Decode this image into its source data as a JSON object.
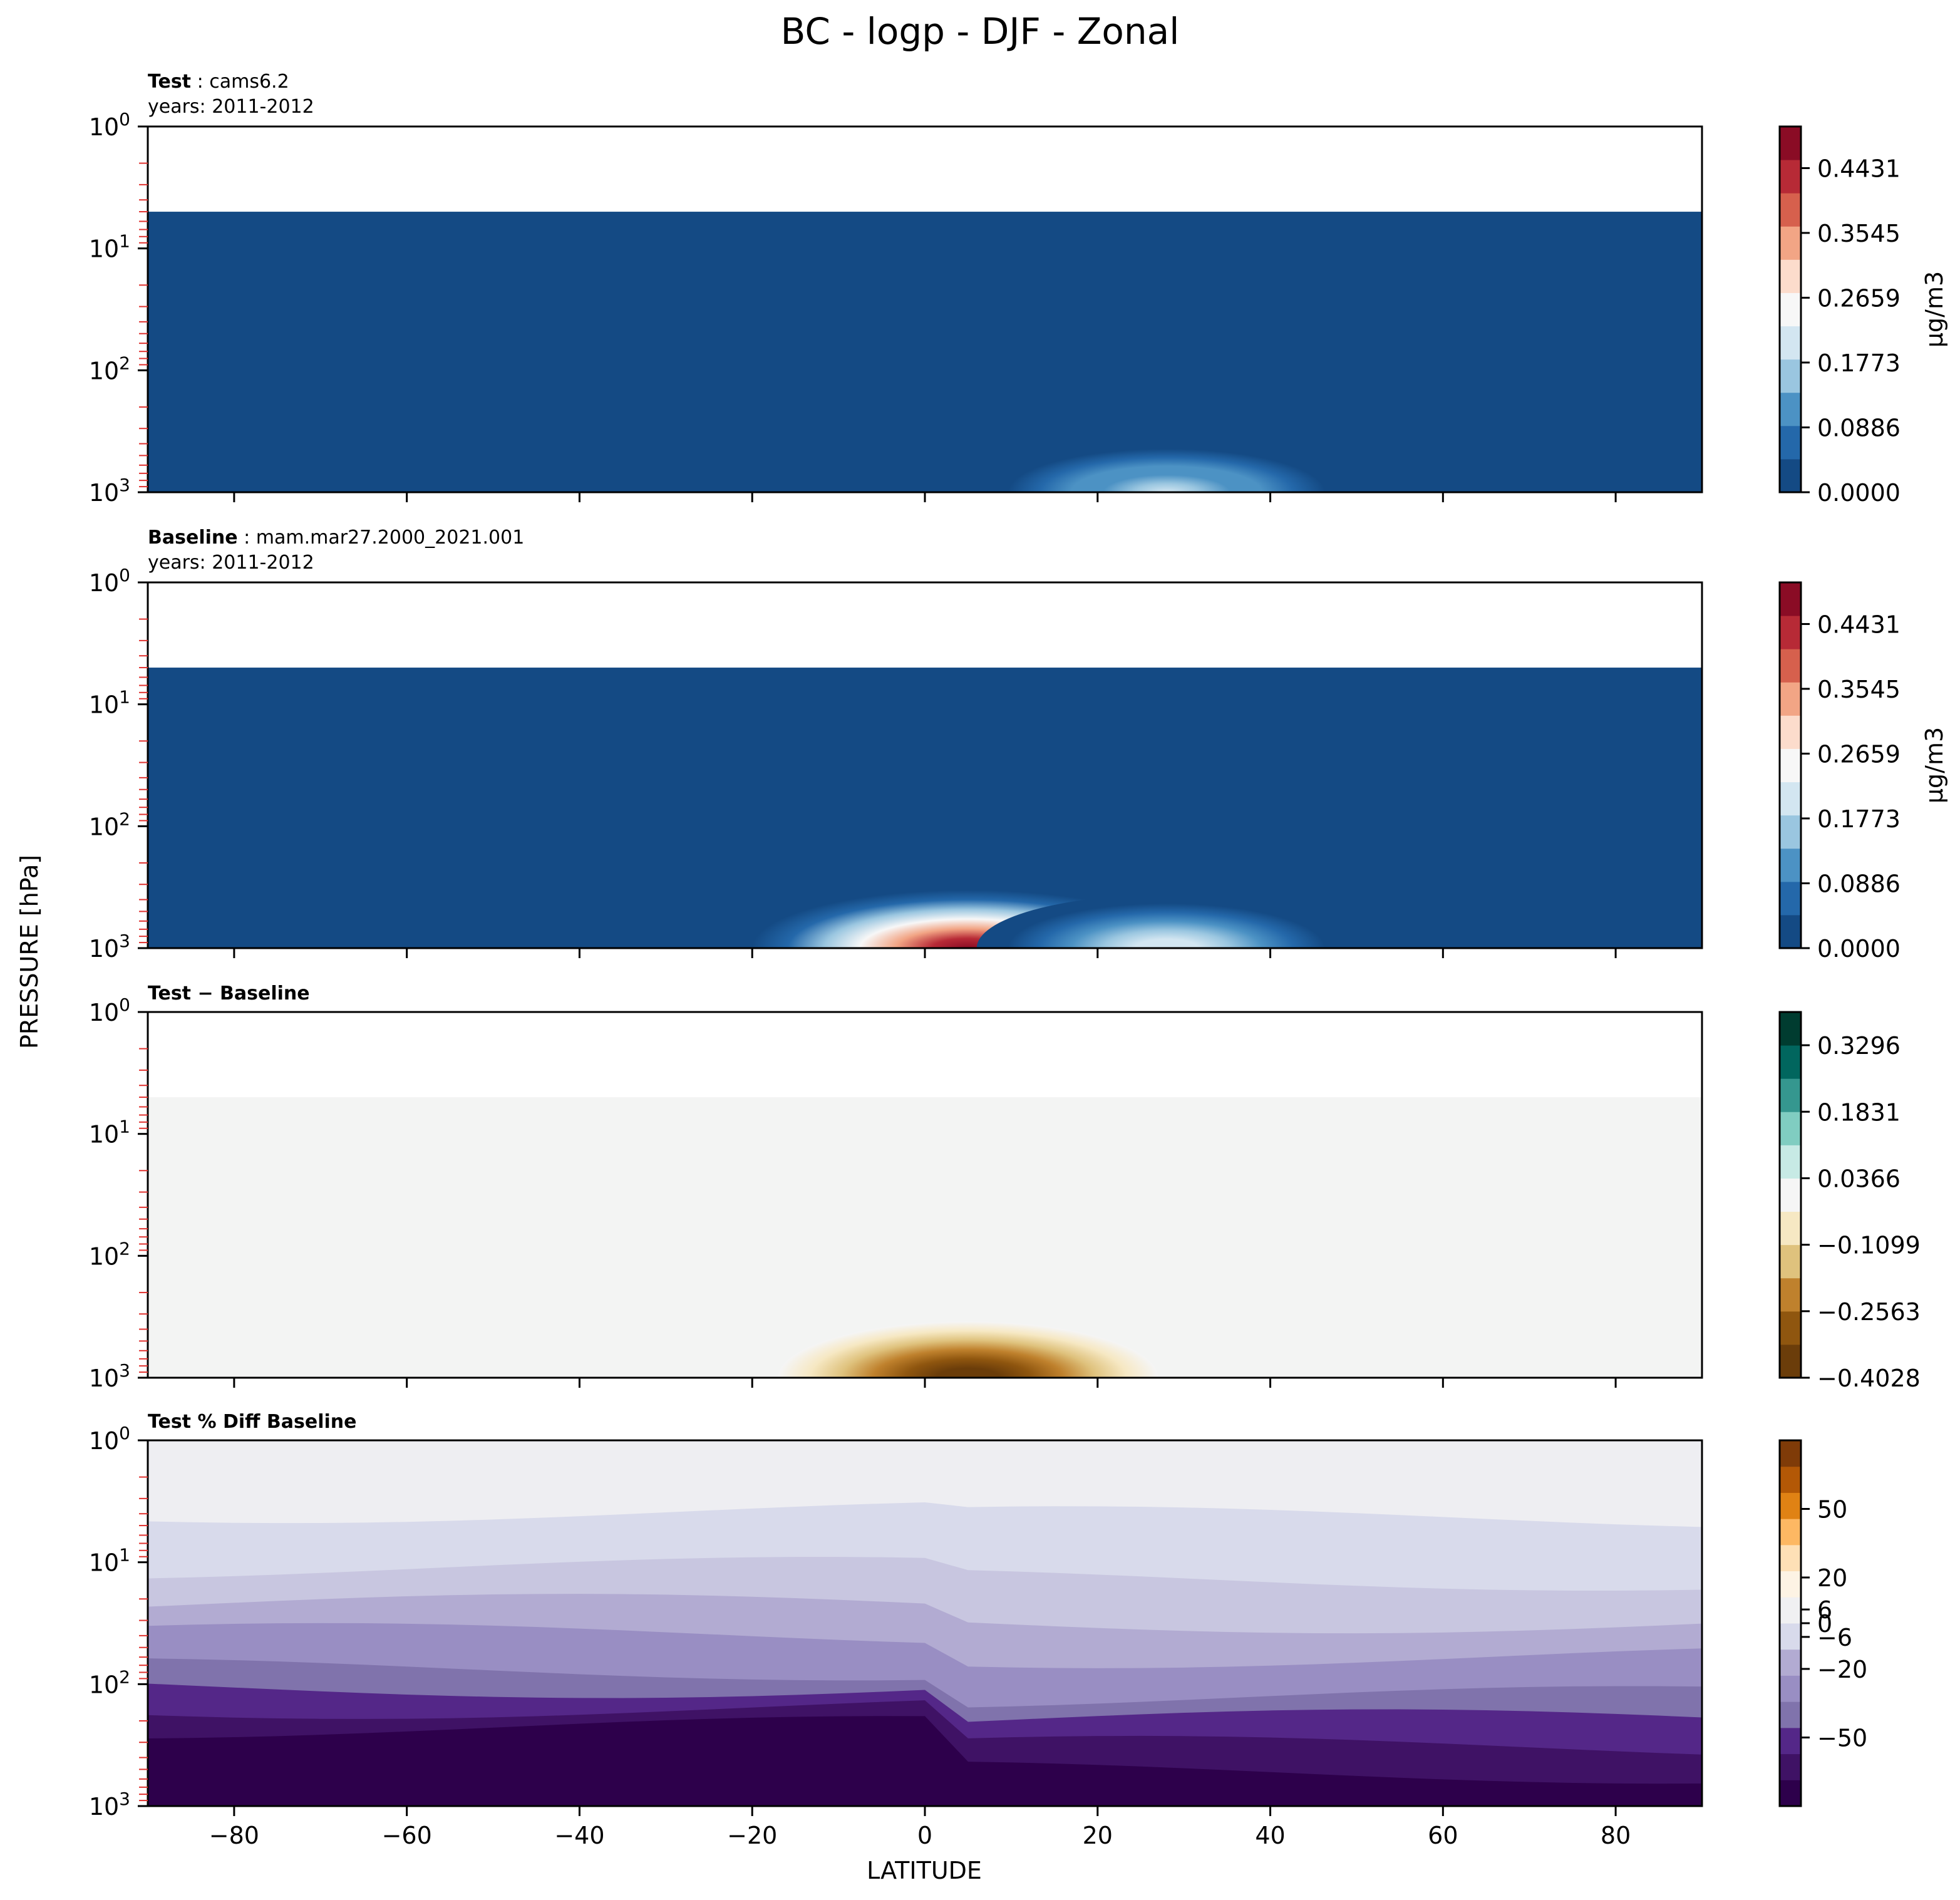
{
  "figure": {
    "title": "BC - logp - DJF - Zonal",
    "ylabel": "PRESSURE [hPa]",
    "xlabel": "LATITUDE"
  },
  "chart_data": [
    {
      "type": "heatmap",
      "title_bold": "Test",
      "title_rest": ": cams6.2",
      "subtitle": "years: 2011-2012",
      "x_range": [
        -90,
        90
      ],
      "y_scale": "log",
      "y_range": [
        1,
        1000
      ],
      "y_ticks": [
        {
          "exp": "0",
          "value": 1
        },
        {
          "exp": "1",
          "value": 10
        },
        {
          "exp": "2",
          "value": 100
        },
        {
          "exp": "3",
          "value": 1000
        }
      ],
      "x_ticks": [
        -80,
        -60,
        -40,
        -20,
        0,
        20,
        40,
        60,
        80
      ],
      "show_x_tick_labels": false,
      "colorbar": {
        "units": "µg/m3",
        "tick_labels": [
          "0.0000",
          "0.0886",
          "0.1773",
          "0.2659",
          "0.3545",
          "0.4431"
        ],
        "tick_values": [
          0,
          0.0886,
          0.1773,
          0.2659,
          0.3545,
          0.4431
        ],
        "range": [
          0,
          0.5
        ],
        "colors": [
          "#144a84",
          "#2468aa",
          "#4c92c4",
          "#9ac6e0",
          "#d3e6f1",
          "#f7f7f7",
          "#fcdccc",
          "#f2a585",
          "#d6604d",
          "#b72a36",
          "#8a0c25"
        ]
      },
      "fill": {
        "pressure_top": 5,
        "background_color": "#144a84"
      },
      "features": [
        {
          "kind": "blob",
          "lat": 28,
          "pressure": 800,
          "peak": 0.2,
          "lat_halfwidth": 22,
          "p_halfwidth": 250,
          "peak_color": "#f7f7f7"
        }
      ]
    },
    {
      "type": "heatmap",
      "title_bold": "Baseline",
      "title_rest": ": mam.mar27.2000_2021.001",
      "subtitle": "years: 2011-2012",
      "x_range": [
        -90,
        90
      ],
      "y_scale": "log",
      "y_range": [
        1,
        1000
      ],
      "y_ticks": [
        {
          "exp": "0",
          "value": 1
        },
        {
          "exp": "1",
          "value": 10
        },
        {
          "exp": "2",
          "value": 100
        },
        {
          "exp": "3",
          "value": 1000
        }
      ],
      "x_ticks": [
        -80,
        -60,
        -40,
        -20,
        0,
        20,
        40,
        60,
        80
      ],
      "show_x_tick_labels": false,
      "colorbar": {
        "units": "µg/m3",
        "tick_labels": [
          "0.0000",
          "0.0886",
          "0.1773",
          "0.2659",
          "0.3545",
          "0.4431"
        ],
        "tick_values": [
          0,
          0.0886,
          0.1773,
          0.2659,
          0.3545,
          0.4431
        ],
        "range": [
          0,
          0.5
        ],
        "colors": [
          "#144a84",
          "#2468aa",
          "#4c92c4",
          "#9ac6e0",
          "#d3e6f1",
          "#f7f7f7",
          "#fcdccc",
          "#f2a585",
          "#d6604d",
          "#b72a36",
          "#8a0c25"
        ]
      },
      "fill": {
        "pressure_top": 5,
        "background_color": "#144a84"
      },
      "features": [
        {
          "kind": "blob",
          "lat": 5,
          "pressure": 950,
          "peak": 0.5,
          "lat_halfwidth": 25,
          "p_halfwidth": 450,
          "peak_color": "#8a0c25"
        },
        {
          "kind": "blob",
          "lat": 28,
          "pressure": 850,
          "peak": 0.22,
          "lat_halfwidth": 22,
          "p_halfwidth": 300,
          "peak_color": "#f7f7f7"
        }
      ]
    },
    {
      "type": "heatmap",
      "title_bold": "Test − Baseline",
      "title_rest": "",
      "subtitle": "",
      "x_range": [
        -90,
        90
      ],
      "y_scale": "log",
      "y_range": [
        1,
        1000
      ],
      "y_ticks": [
        {
          "exp": "0",
          "value": 1
        },
        {
          "exp": "1",
          "value": 10
        },
        {
          "exp": "2",
          "value": 100
        },
        {
          "exp": "3",
          "value": 1000
        }
      ],
      "x_ticks": [
        -80,
        -60,
        -40,
        -20,
        0,
        20,
        40,
        60,
        80
      ],
      "show_x_tick_labels": false,
      "colorbar": {
        "units": "",
        "tick_labels": [
          "−0.4028",
          "−0.2563",
          "−0.1099",
          "0.0366",
          "0.1831",
          "0.3296"
        ],
        "tick_values": [
          -0.4028,
          -0.2563,
          -0.1099,
          0.0366,
          0.1831,
          0.3296
        ],
        "range": [
          -0.4028,
          0.4028
        ],
        "colors": [
          "#6b3d0a",
          "#8f560f",
          "#bf812d",
          "#dfc27d",
          "#f6e8c3",
          "#f5f5f5",
          "#c7eae5",
          "#80cdc1",
          "#35978f",
          "#01665e",
          "#003c30"
        ]
      },
      "fill": {
        "pressure_top": 5,
        "background_color": "#f3f4f3"
      },
      "features": [
        {
          "kind": "blob",
          "lat": 5,
          "pressure": 950,
          "peak": -0.4,
          "lat_halfwidth": 22,
          "p_halfwidth": 400,
          "peak_color": "#6b3d0a"
        }
      ]
    },
    {
      "type": "heatmap",
      "title_bold": "Test % Diff Baseline",
      "title_rest": "",
      "subtitle": "",
      "x_range": [
        -90,
        90
      ],
      "y_scale": "log",
      "y_range": [
        1,
        1000
      ],
      "y_ticks": [
        {
          "exp": "0",
          "value": 1
        },
        {
          "exp": "1",
          "value": 10
        },
        {
          "exp": "2",
          "value": 100
        },
        {
          "exp": "3",
          "value": 1000
        }
      ],
      "x_ticks": [
        -80,
        -60,
        -40,
        -20,
        0,
        20,
        40,
        60,
        80
      ],
      "x_tick_labels": [
        "−80",
        "−60",
        "−40",
        "−20",
        "0",
        "20",
        "40",
        "60",
        "80"
      ],
      "show_x_tick_labels": true,
      "colorbar": {
        "units": "",
        "tick_labels": [
          "−50",
          "−20",
          "−6",
          "0",
          "6",
          "20",
          "50"
        ],
        "tick_values": [
          -50,
          -20,
          -6,
          0,
          6,
          20,
          50
        ],
        "range": [
          -80,
          80
        ],
        "colors": [
          "#2d004b",
          "#3f1265",
          "#542788",
          "#8073ac",
          "#998ec3",
          "#b2abd2",
          "#d8daeb",
          "#f0f0f2",
          "#fdf3e4",
          "#fee0b6",
          "#fdb863",
          "#e08214",
          "#b35806",
          "#7f3b08"
        ]
      },
      "fill": {
        "pressure_top": 1,
        "background_color": "#eeeef2"
      },
      "bands": [
        {
          "pressure_top": 3,
          "color": "#eeeef2"
        },
        {
          "pressure_top": 4,
          "color": "#d8daeb"
        },
        {
          "pressure_top": 12,
          "color": "#c8c6e0"
        },
        {
          "pressure_top": 25,
          "color": "#b2abd2"
        },
        {
          "pressure_top": 45,
          "color": "#998ec3"
        },
        {
          "pressure_top": 90,
          "color": "#8073ac"
        },
        {
          "pressure_top": 130,
          "color": "#542788"
        },
        {
          "pressure_top": 200,
          "color": "#3f1265"
        },
        {
          "pressure_top": 300,
          "color": "#2d004b"
        }
      ]
    }
  ]
}
